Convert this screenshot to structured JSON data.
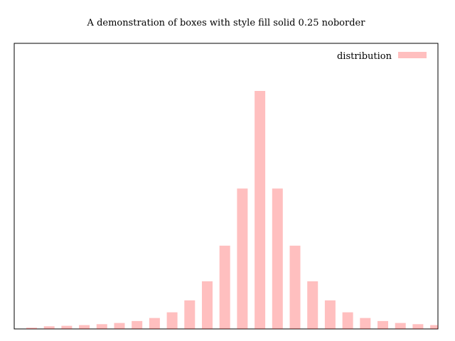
{
  "chart_data": {
    "type": "bar",
    "title": "A demonstration of boxes with style fill solid 0.25 noborder",
    "xlabel": "",
    "ylabel": "",
    "grid": false,
    "legend_position": "top-right",
    "bar_color": "#ff0000",
    "fill_opacity": 0.25,
    "series": [
      {
        "name": "distribution",
        "values": [
          0.5,
          1.1,
          1.3,
          1.6,
          2.0,
          2.5,
          3.3,
          4.6,
          7.0,
          12.0,
          20.0,
          35.0,
          59.0,
          100.0,
          59.0,
          35.0,
          20.0,
          12.0,
          7.0,
          4.6,
          3.3,
          2.5,
          2.0,
          1.6,
          1.3,
          1.1
        ]
      }
    ],
    "ylim": [
      0,
      100
    ]
  }
}
